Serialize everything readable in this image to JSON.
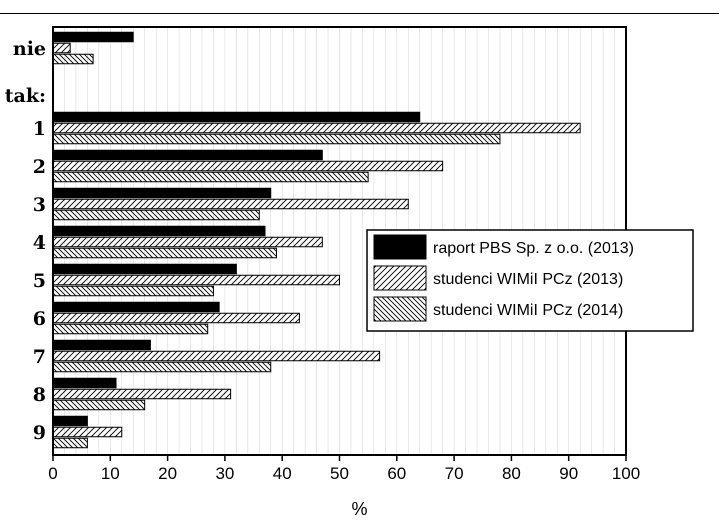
{
  "chart_data": {
    "type": "bar",
    "orientation": "horizontal",
    "categories": [
      "nie",
      "tak:",
      "1",
      "2",
      "3",
      "4",
      "5",
      "6",
      "7",
      "8",
      "9"
    ],
    "series": [
      {
        "name": "raport PBS Sp. z o.o. (2013)",
        "values": [
          14,
          null,
          64,
          47,
          38,
          37,
          32,
          29,
          17,
          11,
          6
        ]
      },
      {
        "name": "studenci WIMiI PCz (2013)",
        "values": [
          3,
          null,
          92,
          68,
          62,
          47,
          50,
          43,
          57,
          31,
          12
        ]
      },
      {
        "name": "studenci WIMiI PCz (2014)",
        "values": [
          7,
          null,
          78,
          55,
          36,
          39,
          28,
          27,
          38,
          16,
          6
        ]
      }
    ],
    "xlabel": "%",
    "ylabel": "",
    "xlim": [
      0,
      100
    ],
    "xticks": [
      "0",
      "10",
      "20",
      "30",
      "40",
      "50",
      "60",
      "70",
      "80",
      "90",
      "100"
    ],
    "grid": "vertical",
    "legend_position": "right-middle",
    "colors": {
      "series1_fill": "#000000",
      "hatch_stroke": "#000000",
      "grid": "#d9d9d9"
    }
  }
}
